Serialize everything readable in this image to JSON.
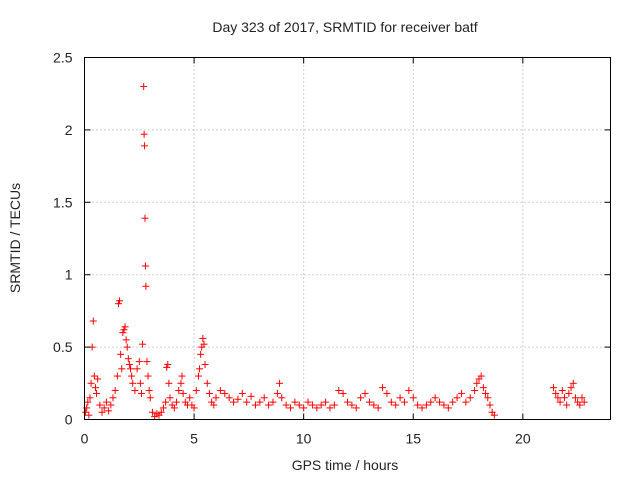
{
  "chart_data": {
    "type": "scatter",
    "title": "Day 323 of 2017, SRMTID for receiver batf",
    "xlabel": "GPS time / hours",
    "ylabel": "SRMTID / TECUs",
    "xlim": [
      0,
      24
    ],
    "ylim": [
      0,
      2.5
    ],
    "xticks": [
      0,
      5,
      10,
      15,
      20
    ],
    "xtick_labels": [
      "0",
      "5",
      "10",
      "15",
      "20"
    ],
    "yticks": [
      0,
      0.5,
      1,
      1.5,
      2,
      2.5
    ],
    "ytick_labels": [
      "0",
      "0.5",
      "1",
      "1.5",
      "2",
      "2.5"
    ],
    "grid": true,
    "marker": "+",
    "color": "#ff0000",
    "series": [
      {
        "name": "SRMTID",
        "points": [
          [
            0.05,
            0.05
          ],
          [
            0.1,
            0.08
          ],
          [
            0.15,
            0.12
          ],
          [
            0.2,
            0.03
          ],
          [
            0.25,
            0.15
          ],
          [
            0.3,
            0.25
          ],
          [
            0.35,
            0.5
          ],
          [
            0.4,
            0.68
          ],
          [
            0.45,
            0.3
          ],
          [
            0.5,
            0.22
          ],
          [
            0.55,
            0.18
          ],
          [
            0.6,
            0.28
          ],
          [
            0.7,
            0.1
          ],
          [
            0.8,
            0.05
          ],
          [
            0.9,
            0.08
          ],
          [
            1.0,
            0.12
          ],
          [
            1.1,
            0.06
          ],
          [
            1.2,
            0.1
          ],
          [
            1.3,
            0.15
          ],
          [
            1.4,
            0.2
          ],
          [
            1.5,
            0.3
          ],
          [
            1.55,
            0.8
          ],
          [
            1.6,
            0.82
          ],
          [
            1.65,
            0.45
          ],
          [
            1.7,
            0.35
          ],
          [
            1.75,
            0.6
          ],
          [
            1.8,
            0.62
          ],
          [
            1.85,
            0.64
          ],
          [
            1.9,
            0.55
          ],
          [
            1.95,
            0.5
          ],
          [
            2.0,
            0.42
          ],
          [
            2.05,
            0.38
          ],
          [
            2.1,
            0.35
          ],
          [
            2.15,
            0.3
          ],
          [
            2.2,
            0.25
          ],
          [
            2.3,
            0.2
          ],
          [
            2.4,
            0.35
          ],
          [
            2.5,
            0.4
          ],
          [
            2.55,
            0.25
          ],
          [
            2.6,
            0.18
          ],
          [
            2.65,
            0.52
          ],
          [
            2.7,
            2.3
          ],
          [
            2.72,
            1.97
          ],
          [
            2.74,
            1.89
          ],
          [
            2.76,
            1.39
          ],
          [
            2.78,
            1.06
          ],
          [
            2.8,
            0.92
          ],
          [
            2.85,
            0.4
          ],
          [
            2.9,
            0.3
          ],
          [
            2.95,
            0.2
          ],
          [
            3.0,
            0.15
          ],
          [
            3.1,
            0.05
          ],
          [
            3.2,
            0.02
          ],
          [
            3.3,
            0.04
          ],
          [
            3.4,
            0.03
          ],
          [
            3.5,
            0.05
          ],
          [
            3.6,
            0.08
          ],
          [
            3.7,
            0.12
          ],
          [
            3.75,
            0.36
          ],
          [
            3.8,
            0.38
          ],
          [
            3.85,
            0.25
          ],
          [
            3.9,
            0.15
          ],
          [
            4.0,
            0.1
          ],
          [
            4.1,
            0.08
          ],
          [
            4.2,
            0.12
          ],
          [
            4.3,
            0.2
          ],
          [
            4.4,
            0.25
          ],
          [
            4.45,
            0.3
          ],
          [
            4.5,
            0.18
          ],
          [
            4.6,
            0.12
          ],
          [
            4.7,
            0.1
          ],
          [
            4.8,
            0.15
          ],
          [
            4.9,
            0.1
          ],
          [
            5.0,
            0.08
          ],
          [
            5.1,
            0.2
          ],
          [
            5.2,
            0.3
          ],
          [
            5.25,
            0.35
          ],
          [
            5.3,
            0.45
          ],
          [
            5.35,
            0.5
          ],
          [
            5.4,
            0.56
          ],
          [
            5.45,
            0.52
          ],
          [
            5.5,
            0.38
          ],
          [
            5.6,
            0.25
          ],
          [
            5.7,
            0.18
          ],
          [
            5.8,
            0.12
          ],
          [
            5.9,
            0.1
          ],
          [
            6.0,
            0.15
          ],
          [
            6.2,
            0.2
          ],
          [
            6.4,
            0.18
          ],
          [
            6.6,
            0.15
          ],
          [
            6.8,
            0.12
          ],
          [
            7.0,
            0.14
          ],
          [
            7.2,
            0.18
          ],
          [
            7.4,
            0.12
          ],
          [
            7.6,
            0.16
          ],
          [
            7.8,
            0.1
          ],
          [
            8.0,
            0.12
          ],
          [
            8.2,
            0.15
          ],
          [
            8.4,
            0.1
          ],
          [
            8.6,
            0.12
          ],
          [
            8.8,
            0.18
          ],
          [
            8.9,
            0.25
          ],
          [
            9.0,
            0.15
          ],
          [
            9.2,
            0.1
          ],
          [
            9.4,
            0.08
          ],
          [
            9.6,
            0.12
          ],
          [
            9.8,
            0.1
          ],
          [
            10.0,
            0.08
          ],
          [
            10.2,
            0.12
          ],
          [
            10.4,
            0.1
          ],
          [
            10.6,
            0.08
          ],
          [
            10.8,
            0.1
          ],
          [
            11.0,
            0.12
          ],
          [
            11.2,
            0.08
          ],
          [
            11.4,
            0.1
          ],
          [
            11.6,
            0.2
          ],
          [
            11.8,
            0.18
          ],
          [
            12.0,
            0.12
          ],
          [
            12.2,
            0.1
          ],
          [
            12.4,
            0.08
          ],
          [
            12.6,
            0.15
          ],
          [
            12.8,
            0.18
          ],
          [
            13.0,
            0.12
          ],
          [
            13.2,
            0.1
          ],
          [
            13.4,
            0.08
          ],
          [
            13.6,
            0.22
          ],
          [
            13.8,
            0.18
          ],
          [
            14.0,
            0.12
          ],
          [
            14.2,
            0.1
          ],
          [
            14.4,
            0.15
          ],
          [
            14.6,
            0.12
          ],
          [
            14.8,
            0.2
          ],
          [
            15.0,
            0.15
          ],
          [
            15.2,
            0.1
          ],
          [
            15.4,
            0.08
          ],
          [
            15.6,
            0.1
          ],
          [
            15.8,
            0.12
          ],
          [
            16.0,
            0.15
          ],
          [
            16.2,
            0.12
          ],
          [
            16.4,
            0.1
          ],
          [
            16.6,
            0.08
          ],
          [
            16.8,
            0.12
          ],
          [
            17.0,
            0.15
          ],
          [
            17.2,
            0.18
          ],
          [
            17.4,
            0.12
          ],
          [
            17.6,
            0.15
          ],
          [
            17.8,
            0.2
          ],
          [
            17.9,
            0.25
          ],
          [
            18.0,
            0.28
          ],
          [
            18.1,
            0.3
          ],
          [
            18.2,
            0.22
          ],
          [
            18.3,
            0.18
          ],
          [
            18.4,
            0.15
          ],
          [
            18.5,
            0.1
          ],
          [
            18.6,
            0.05
          ],
          [
            18.7,
            0.03
          ],
          [
            21.4,
            0.22
          ],
          [
            21.5,
            0.18
          ],
          [
            21.6,
            0.15
          ],
          [
            21.7,
            0.12
          ],
          [
            21.8,
            0.2
          ],
          [
            21.9,
            0.15
          ],
          [
            22.0,
            0.1
          ],
          [
            22.1,
            0.18
          ],
          [
            22.2,
            0.22
          ],
          [
            22.3,
            0.25
          ],
          [
            22.4,
            0.15
          ],
          [
            22.5,
            0.12
          ],
          [
            22.6,
            0.1
          ],
          [
            22.7,
            0.15
          ],
          [
            22.8,
            0.12
          ]
        ]
      }
    ]
  }
}
